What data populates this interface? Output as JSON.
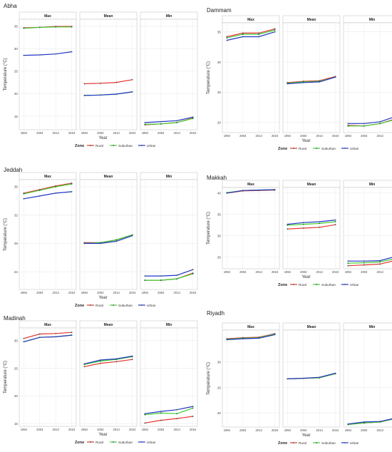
{
  "chart_data": [
    {
      "type": "line",
      "city": "Abha",
      "facets": [
        "Max",
        "Mean",
        "Min"
      ],
      "x": [
        1994,
        2004,
        2014,
        2024
      ],
      "xlabel": "Year",
      "ylabel": "Temperature (°C)",
      "yticks": [
        15,
        20,
        25,
        30,
        35
      ],
      "ylim": [
        12,
        36.5
      ],
      "legend": {
        "title": "Zone",
        "position": "bottom"
      },
      "series": {
        "Max": {
          "Rural": [
            34.6,
            34.7,
            34.9,
            34.9
          ],
          "Suburban": [
            34.5,
            34.7,
            34.8,
            34.8
          ],
          "Urban": [
            28.5,
            28.6,
            28.8,
            29.3
          ]
        },
        "Mean": {
          "Rural": [
            22.2,
            22.3,
            22.5,
            23.1
          ],
          "Suburban": [
            19.6,
            19.7,
            19.9,
            20.4
          ],
          "Urban": [
            19.6,
            19.7,
            19.9,
            20.4
          ]
        },
        "Min": {
          "Rural": [
            13.1,
            13.3,
            13.6,
            14.6
          ],
          "Suburban": [
            13.2,
            13.3,
            13.6,
            14.5
          ],
          "Urban": [
            13.6,
            13.8,
            14.0,
            14.8
          ]
        }
      }
    },
    {
      "type": "line",
      "city": "Dammam",
      "facets": [
        "Max",
        "Mean",
        "Min"
      ],
      "x": [
        1994,
        2004,
        2014,
        2024
      ],
      "xlabel": "Year",
      "ylabel": "Temperature (°C)",
      "yticks": [
        20,
        25,
        30,
        35
      ],
      "ylim": [
        18.3,
        36.5
      ],
      "legend": {
        "title": "Zone",
        "position": "bottom"
      },
      "series": {
        "Max": {
          "Rural": [
            34.2,
            34.8,
            34.8,
            35.5
          ],
          "Suburban": [
            34.0,
            34.6,
            34.6,
            35.3
          ],
          "Urban": [
            33.6,
            34.2,
            34.2,
            35.0
          ]
        },
        "Mean": {
          "Rural": [
            26.6,
            26.8,
            26.9,
            27.6
          ],
          "Suburban": [
            26.5,
            26.7,
            26.8,
            27.5
          ],
          "Urban": [
            26.4,
            26.6,
            26.7,
            27.5
          ]
        },
        "Min": {
          "Rural": [
            19.5,
            19.4,
            19.8,
            20.6
          ],
          "Suburban": [
            19.4,
            19.4,
            19.8,
            20.5
          ],
          "Urban": [
            19.8,
            19.8,
            20.1,
            21.0
          ]
        }
      }
    },
    {
      "type": "line",
      "city": "Jeddah",
      "facets": [
        "Max",
        "Mean",
        "Min"
      ],
      "x": [
        1994,
        2004,
        2014,
        2024
      ],
      "xlabel": "Year",
      "ylabel": "Temperature (°C)",
      "yticks": [
        24,
        28,
        32,
        36
      ],
      "ylim": [
        21.5,
        37
      ],
      "legend": {
        "title": "Zone",
        "position": "bottom"
      },
      "series": {
        "Max": {
          "Rural": [
            35.1,
            35.6,
            36.1,
            36.5
          ],
          "Suburban": [
            35.0,
            35.5,
            36.0,
            36.4
          ],
          "Urban": [
            34.3,
            34.7,
            35.1,
            35.3
          ]
        },
        "Mean": {
          "Rural": [
            28.1,
            28.1,
            28.5,
            29.2
          ],
          "Suburban": [
            28.0,
            28.1,
            28.5,
            29.2
          ],
          "Urban": [
            28.0,
            28.0,
            28.3,
            29.1
          ]
        },
        "Min": {
          "Rural": [
            22.8,
            22.8,
            23.0,
            23.8
          ],
          "Suburban": [
            22.8,
            22.8,
            23.0,
            23.7
          ],
          "Urban": [
            23.4,
            23.4,
            23.5,
            24.3
          ]
        }
      }
    },
    {
      "type": "line",
      "city": "Makkah",
      "facets": [
        "Max",
        "Mean",
        "Min"
      ],
      "x": [
        1994,
        2004,
        2014,
        2024
      ],
      "xlabel": "Year",
      "ylabel": "Temperature (°C)",
      "yticks": [
        25,
        30,
        35,
        40
      ],
      "ylim": [
        22.3,
        41.3
      ],
      "legend": {
        "title": "Zone",
        "position": "bottom"
      },
      "series": {
        "Max": {
          "Rural": [
            40.0,
            40.5,
            40.6,
            40.7
          ],
          "Suburban": [
            40.1,
            40.6,
            40.7,
            40.8
          ],
          "Urban": [
            40.0,
            40.6,
            40.7,
            40.8
          ]
        },
        "Mean": {
          "Rural": [
            31.6,
            31.8,
            32.0,
            32.6
          ],
          "Suburban": [
            32.5,
            32.7,
            32.9,
            33.3
          ],
          "Urban": [
            32.7,
            33.1,
            33.3,
            33.7
          ]
        },
        "Min": {
          "Rural": [
            23.0,
            23.2,
            23.4,
            24.3
          ],
          "Suburban": [
            23.6,
            23.7,
            23.9,
            24.7
          ],
          "Urban": [
            24.1,
            24.1,
            24.2,
            25.2
          ]
        }
      }
    },
    {
      "type": "line",
      "city": "Madinah",
      "facets": [
        "Max",
        "Mean",
        "Min"
      ],
      "x": [
        1994,
        2004,
        2014,
        2024
      ],
      "xlabel": "Year",
      "ylabel": "Temperature (°C)",
      "yticks": [
        15,
        20,
        25,
        30
      ],
      "ylim": [
        14.5,
        32.3
      ],
      "legend": {
        "title": "Zone",
        "position": "bottom"
      },
      "series": {
        "Max": {
          "Rural": [
            30.4,
            31.2,
            31.3,
            31.5
          ],
          "Suburban": [
            29.8,
            30.6,
            30.7,
            31.0
          ],
          "Urban": [
            29.8,
            30.6,
            30.7,
            31.0
          ]
        },
        "Mean": {
          "Rural": [
            25.3,
            25.9,
            26.2,
            26.6
          ],
          "Suburban": [
            25.7,
            26.3,
            26.6,
            27.1
          ],
          "Urban": [
            25.8,
            26.5,
            26.7,
            27.2
          ]
        },
        "Min": {
          "Rural": [
            15.1,
            15.6,
            15.9,
            16.3
          ],
          "Suburban": [
            16.6,
            16.9,
            16.8,
            17.8
          ],
          "Urban": [
            16.8,
            17.2,
            17.5,
            18.1
          ]
        }
      }
    },
    {
      "type": "line",
      "city": "Riyadh",
      "facets": [
        "Max",
        "Mean",
        "Min"
      ],
      "x": [
        1994,
        2004,
        2014,
        2024
      ],
      "xlabel": "Year",
      "ylabel": "Temperature (°C)",
      "yticks": [
        20,
        25,
        30
      ],
      "ylim": [
        17.2,
        36.3
      ],
      "legend": {
        "title": "Zone",
        "position": "bottom"
      },
      "series": {
        "Max": {
          "Rural": [
            34.6,
            34.8,
            34.9,
            35.6
          ],
          "Suburban": [
            34.5,
            34.7,
            34.8,
            35.5
          ],
          "Urban": [
            34.4,
            34.6,
            34.7,
            35.4
          ]
        },
        "Mean": {
          "Rural": [
            26.7,
            26.8,
            26.9,
            27.7
          ],
          "Suburban": [
            26.7,
            26.8,
            26.9,
            27.7
          ],
          "Urban": [
            26.7,
            26.8,
            27.0,
            27.8
          ]
        },
        "Min": {
          "Rural": [
            17.7,
            18.0,
            18.2,
            18.9
          ],
          "Suburban": [
            17.7,
            18.0,
            18.2,
            18.9
          ],
          "Urban": [
            17.8,
            18.2,
            18.3,
            19.0
          ]
        }
      }
    }
  ],
  "legend": {
    "title": "Zone",
    "items": [
      {
        "label": "Rural",
        "color": "#e8322c"
      },
      {
        "label": "Suburban",
        "color": "#3ecf2f"
      },
      {
        "label": "Urban",
        "color": "#2333c8"
      }
    ]
  },
  "marker_color": "#2b5f5a"
}
